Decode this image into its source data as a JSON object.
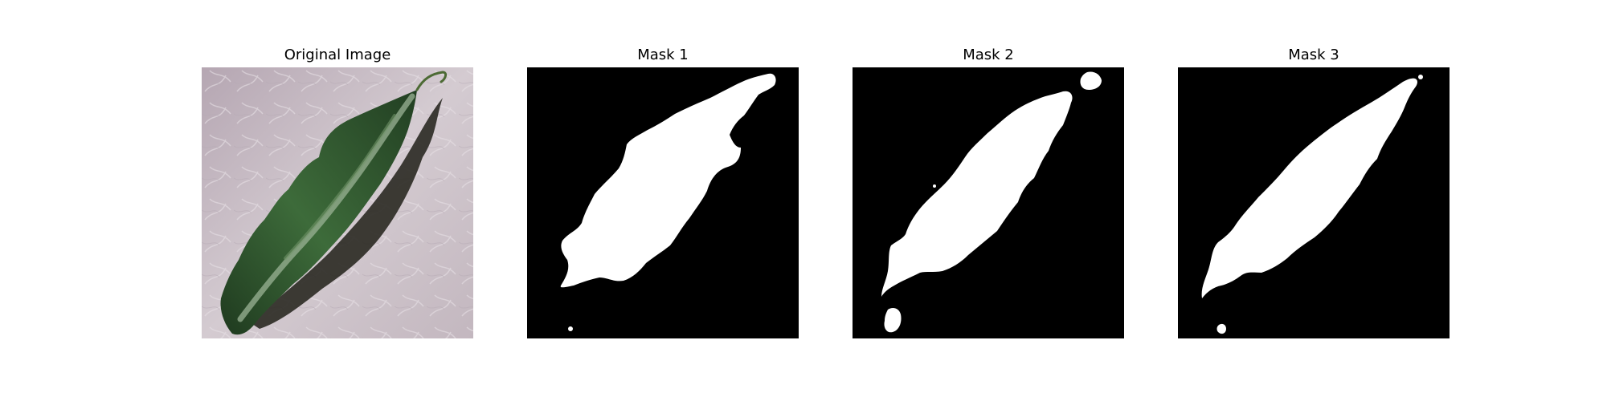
{
  "figure": {
    "background": "#ffffff",
    "panels": [
      {
        "title": "Original Image",
        "kind": "photo"
      },
      {
        "title": "Mask 1",
        "kind": "mask"
      },
      {
        "title": "Mask 2",
        "kind": "mask"
      },
      {
        "title": "Mask 3",
        "kind": "mask"
      }
    ]
  },
  "colors": {
    "photo_background": "#c9bec6",
    "photo_shadow": "#2b2a22",
    "leaf_dark": "#233f22",
    "leaf_mid": "#3c6a3a",
    "leaf_light": "#95ad90",
    "mask_background": "#000000",
    "mask_foreground": "#ffffff"
  }
}
